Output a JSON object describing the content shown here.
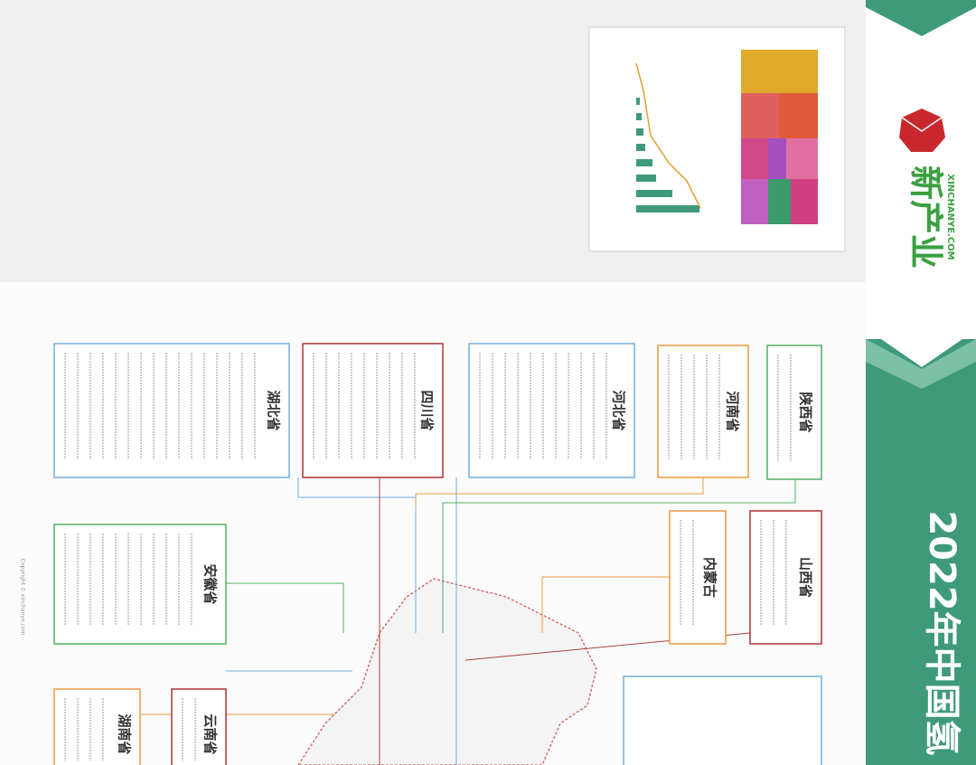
{
  "header": {
    "title": "2022年中国氢",
    "logo": "新产业",
    "logo_url": "XINCHANYE.COM"
  },
  "provinces": [
    {
      "name": "湖北省"
    },
    {
      "name": "四川省"
    },
    {
      "name": "河北省"
    },
    {
      "name": "河南省"
    },
    {
      "name": "陕西省"
    },
    {
      "name": "安徽省"
    },
    {
      "name": "内蒙古"
    },
    {
      "name": "山西省"
    },
    {
      "name": "湖南省"
    },
    {
      "name": "云南省"
    }
  ],
  "copyright": "Copyright © xinchanye.com"
}
